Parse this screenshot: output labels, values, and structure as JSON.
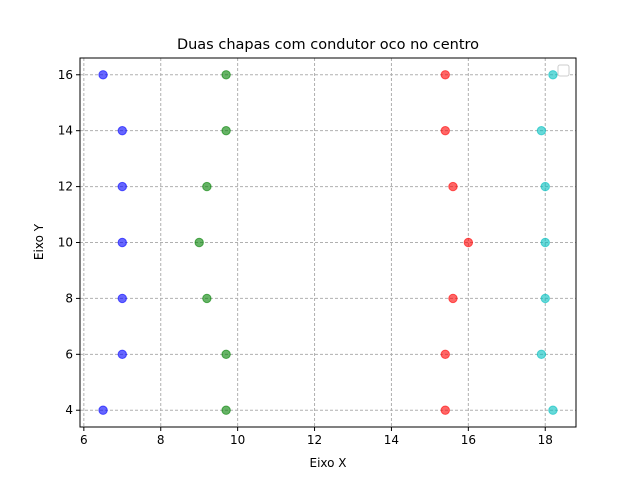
{
  "chart_data": {
    "type": "scatter",
    "title": "Duas chapas com condutor oco no centro",
    "xlabel": "Eixo X",
    "ylabel": "Eixo Y",
    "xlim": [
      5.9,
      18.8
    ],
    "ylim": [
      3.4,
      16.6
    ],
    "xticks": [
      6,
      8,
      10,
      12,
      14,
      16,
      18
    ],
    "yticks": [
      4,
      6,
      8,
      10,
      12,
      14,
      16
    ],
    "grid": true,
    "legend": "top-right, empty",
    "series": [
      {
        "color": "#0000ff",
        "points": [
          [
            6.5,
            4
          ],
          [
            7.0,
            6
          ],
          [
            7.0,
            8
          ],
          [
            7.0,
            10
          ],
          [
            7.0,
            12
          ],
          [
            7.0,
            14
          ],
          [
            6.5,
            16
          ]
        ]
      },
      {
        "color": "#008000",
        "points": [
          [
            9.7,
            4
          ],
          [
            9.7,
            6
          ],
          [
            9.2,
            8
          ],
          [
            9.0,
            10
          ],
          [
            9.2,
            12
          ],
          [
            9.7,
            14
          ],
          [
            9.7,
            16
          ]
        ]
      },
      {
        "color": "#ff0000",
        "points": [
          [
            15.4,
            4
          ],
          [
            15.4,
            6
          ],
          [
            15.6,
            8
          ],
          [
            16.0,
            10
          ],
          [
            15.6,
            12
          ],
          [
            15.4,
            14
          ],
          [
            15.4,
            16
          ]
        ]
      },
      {
        "color": "#00bfbf",
        "points": [
          [
            18.2,
            4
          ],
          [
            17.9,
            6
          ],
          [
            18.0,
            8
          ],
          [
            18.0,
            10
          ],
          [
            18.0,
            12
          ],
          [
            17.9,
            14
          ],
          [
            18.2,
            16
          ]
        ]
      }
    ]
  }
}
